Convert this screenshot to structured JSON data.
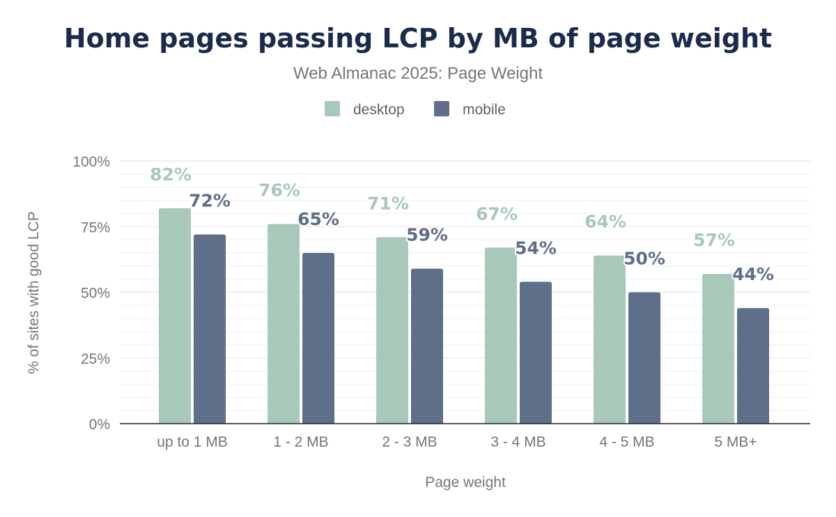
{
  "chart_data": {
    "type": "bar",
    "title": "Home pages passing LCP by MB of page weight",
    "subtitle": "Web Almanac 2025: Page Weight",
    "xlabel": "Page weight",
    "ylabel": "% of sites with good LCP",
    "categories": [
      "up to 1 MB",
      "1 - 2 MB",
      "2 - 3 MB",
      "3 - 4 MB",
      "4 - 5 MB",
      "5 MB+"
    ],
    "series": [
      {
        "name": "desktop",
        "color": "#a8c8b9",
        "values": [
          82,
          76,
          71,
          67,
          64,
          57
        ]
      },
      {
        "name": "mobile",
        "color": "#5f6e89",
        "values": [
          72,
          65,
          59,
          54,
          50,
          44
        ]
      }
    ],
    "ylim": [
      0,
      100
    ],
    "yticks": [
      "0%",
      "25%",
      "50%",
      "75%",
      "100%"
    ],
    "grid": true,
    "legend": "top-center",
    "data_label_suffix": "%"
  }
}
